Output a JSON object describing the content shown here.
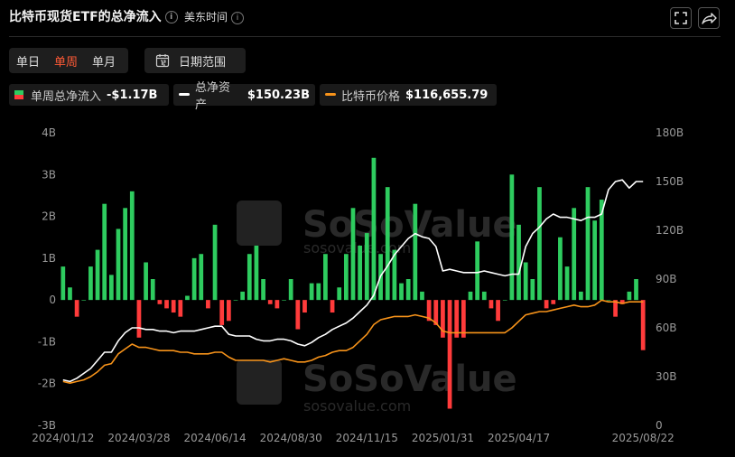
{
  "header": {
    "title": "比特币现货ETF的总净流入",
    "timezone": "美东时间",
    "info_glyph": "i"
  },
  "controls": {
    "periods": [
      "单日",
      "单周",
      "单月"
    ],
    "active_period": "单周",
    "date_range_label": "日期范围"
  },
  "legend": {
    "items": [
      {
        "label": "单周总净流入",
        "value": "-$1.17B"
      },
      {
        "label": "总净资产",
        "value": "$150.23B"
      },
      {
        "label": "比特币价格",
        "value": "$116,655.79"
      }
    ]
  },
  "watermark": {
    "brand": "SoSoValue",
    "url": "sosovalue.com"
  },
  "colors": {
    "positive": "#2ecc5f",
    "negative": "#ff3b3b",
    "assets_line": "#ffffff",
    "price_line": "#f7931a",
    "active_tab": "#ff5a36"
  },
  "chart_data": {
    "type": "bar",
    "title": "比特币现货ETF的总净流入",
    "left_axis": {
      "ticks": [
        "4B",
        "3B",
        "2B",
        "1B",
        "0",
        "-1B",
        "-2B",
        "-3B"
      ],
      "ylim": [
        -3,
        4
      ]
    },
    "right_axis": {
      "ticks": [
        "180B",
        "150B",
        "120B",
        "90B",
        "60B",
        "30B",
        "0"
      ],
      "ylim": [
        0,
        180
      ]
    },
    "x_tick_labels": [
      "2024/01/12",
      "2024/03/28",
      "2024/06/14",
      "2024/08/30",
      "2024/11/15",
      "2025/01/31",
      "2025/04/17",
      "2025/08/22"
    ],
    "x_tick_index": [
      0,
      11,
      22,
      33,
      44,
      55,
      66,
      84
    ],
    "grid": false,
    "series": [
      {
        "name": "单周总净流入",
        "axis": "left",
        "kind": "bar",
        "values": [
          0.8,
          0.3,
          -0.4,
          0,
          0.8,
          1.2,
          2.3,
          0.6,
          1.7,
          2.2,
          2.6,
          -0.9,
          0.9,
          0.5,
          -0.1,
          -0.2,
          -0.3,
          -0.4,
          0.1,
          1,
          1.1,
          -0.2,
          1.8,
          -0.6,
          -0.5,
          0,
          0.2,
          1.1,
          1.3,
          0.5,
          -0.1,
          -0.2,
          0,
          0.5,
          -0.7,
          -0.3,
          0.4,
          0.4,
          1.1,
          -0.3,
          0.3,
          1.1,
          2.2,
          1.3,
          1.6,
          3.4,
          1.1,
          2.7,
          1.2,
          0.4,
          0.5,
          2.3,
          0.2,
          -0.5,
          -0.6,
          -0.9,
          -2.6,
          -0.9,
          -0.9,
          0.2,
          1.4,
          0.2,
          -0.2,
          -0.5,
          0,
          3,
          1.8,
          0.9,
          0.5,
          2.7,
          -0.2,
          -0.1,
          1.5,
          0.8,
          2.2,
          0.2,
          2.7,
          1.9,
          2.4,
          0,
          -0.4,
          -0.1,
          0.2,
          0.5,
          -1.2
        ]
      },
      {
        "name": "总净资产",
        "axis": "right",
        "kind": "line",
        "values": [
          28,
          27,
          29,
          32,
          35,
          40,
          45,
          45,
          52,
          57,
          60,
          60,
          59,
          59,
          58,
          58,
          57,
          58,
          58,
          58,
          59,
          60,
          61,
          61,
          56,
          55,
          55,
          55,
          53,
          52,
          52,
          53,
          53,
          52,
          50,
          49,
          51,
          54,
          56,
          59,
          61,
          63,
          66,
          70,
          74,
          80,
          92,
          98,
          105,
          110,
          115,
          118,
          116,
          115,
          110,
          95,
          96,
          95,
          94,
          94,
          94,
          95,
          94,
          93,
          92,
          93,
          93,
          110,
          118,
          122,
          127,
          130,
          128,
          128,
          127,
          126,
          128,
          128,
          130,
          145,
          150,
          151,
          146,
          150,
          150
        ]
      },
      {
        "name": "比特币价格",
        "axis": "right",
        "kind": "line",
        "values": [
          27,
          26,
          27,
          28,
          30,
          33,
          37,
          38,
          44,
          47,
          50,
          48,
          48,
          47,
          46,
          46,
          46,
          45,
          45,
          44,
          44,
          44,
          45,
          45,
          42,
          40,
          40,
          40,
          40,
          40,
          39,
          40,
          41,
          40,
          39,
          39,
          40,
          42,
          43,
          45,
          46,
          46,
          48,
          52,
          56,
          62,
          65,
          66,
          67,
          67,
          67,
          68,
          67,
          66,
          63,
          58,
          57,
          57,
          57,
          57,
          57,
          57,
          57,
          57,
          57,
          60,
          64,
          68,
          69,
          70,
          70,
          71,
          72,
          73,
          74,
          73,
          73,
          74,
          77,
          76,
          76,
          75,
          76,
          76,
          76
        ]
      }
    ]
  }
}
